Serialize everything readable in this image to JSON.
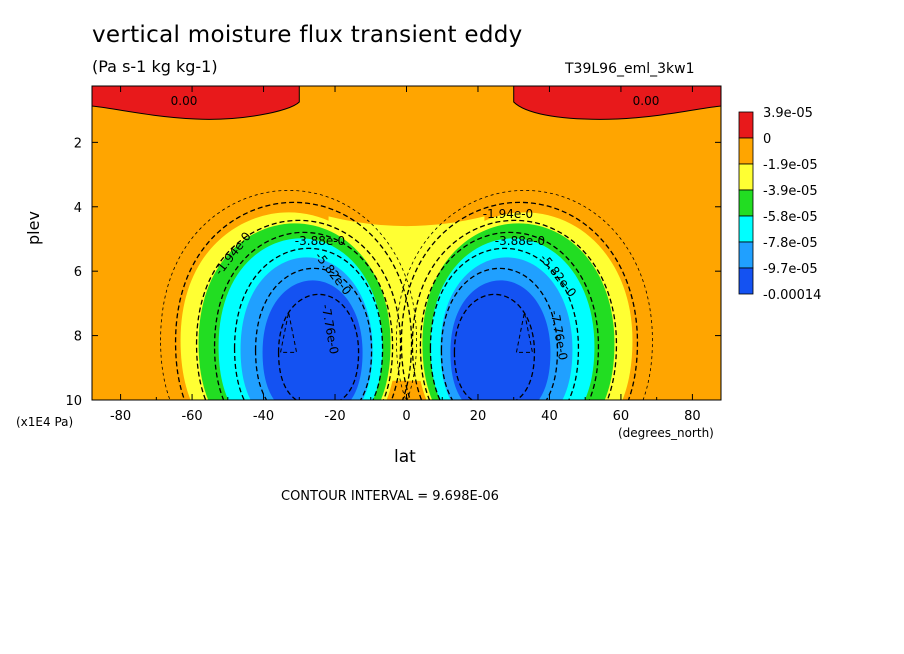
{
  "chart_data": {
    "type": "heatmap",
    "title": "vertical moisture flux transient eddy",
    "units": "(Pa s-1 kg kg-1)",
    "run_label": "T39L96_eml_3kw1",
    "xlabel": "lat",
    "x_units": "(degrees_north)",
    "ylabel": "plev",
    "y_units": "(x1E4 Pa)",
    "xlim": [
      -88,
      88
    ],
    "ylim": [
      10,
      0.25
    ],
    "x_ticks": [
      "-80",
      "-60",
      "-40",
      "-20",
      "0",
      "20",
      "40",
      "60",
      "80"
    ],
    "y_ticks": [
      "2",
      "4",
      "6",
      "8",
      "10"
    ],
    "colorbar": {
      "labels": [
        "3.9e-05",
        "0",
        "-1.9e-05",
        "-3.9e-05",
        "-5.8e-05",
        "-7.8e-05",
        "-9.7e-05",
        "-0.00014"
      ],
      "colors": [
        "#e8191b",
        "#ffa500",
        "#ffff33",
        "#22dd22",
        "#00ffff",
        "#20a0ff",
        "#1452f2"
      ]
    },
    "contour_labels": [
      "0.00",
      "0.00",
      "-1.94e-0",
      "-3.88e-0",
      "-5.82e-0",
      "-7.76e-0",
      "-1.94e-0",
      "-3.88e-0",
      "-5.82e-0",
      "-7.76e-0"
    ],
    "cells": {
      "minimum_centers": [
        {
          "lat": -33,
          "plev": 7.9,
          "value": -0.00014
        },
        {
          "lat": 33,
          "plev": 7.9,
          "value": -0.00014
        }
      ],
      "positive_regions": [
        {
          "lat_from": -88,
          "lat_to": -30,
          "plev_top": 0.25,
          "plev_bottom": 1.4,
          "value": 3.9e-05
        },
        {
          "lat_from": 30,
          "lat_to": 88,
          "plev_top": 0.25,
          "plev_bottom": 1.4,
          "value": 3.9e-05
        }
      ]
    },
    "contour_interval_text": "CONTOUR INTERVAL = 9.698E-06"
  }
}
